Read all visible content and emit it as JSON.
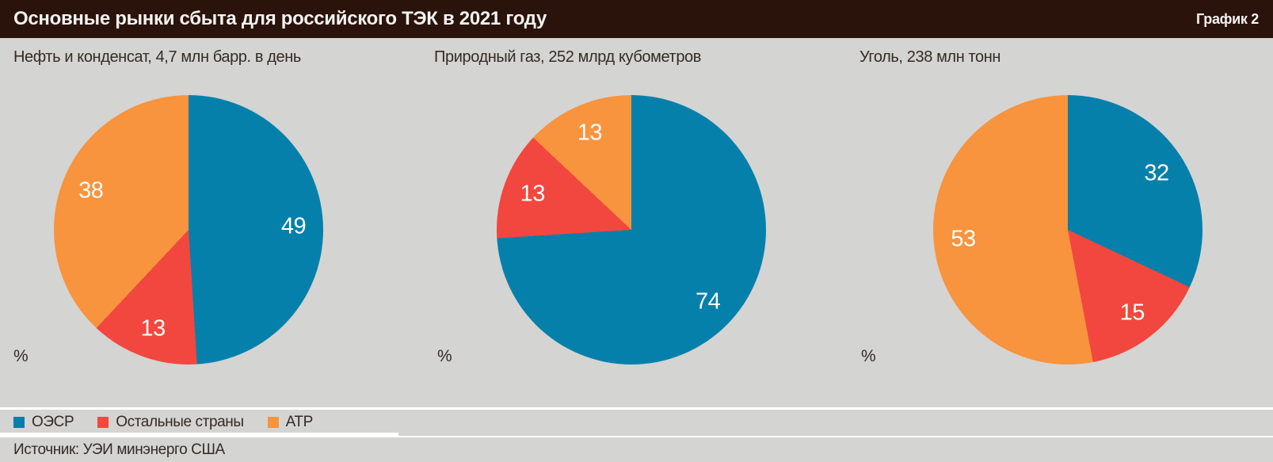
{
  "header": {
    "title": "Основные рынки сбыта для российского ТЭК в 2021 году",
    "chart_number": "График 2"
  },
  "legend": {
    "position": "bottom-left",
    "items": [
      {
        "label": "ОЭСР",
        "color": "#0580ab"
      },
      {
        "label": "Остальные страны",
        "color": "#f2473e"
      },
      {
        "label": "АТР",
        "color": "#f8933e"
      }
    ]
  },
  "percent_symbol": "%",
  "source": "Источник: УЭИ минэнерго США",
  "colors": {
    "header_bg": "#2a130b",
    "page_bg": "#d4d4d2",
    "text_dark": "#352b24",
    "slice_label": "#ffffff"
  },
  "chart_data": [
    {
      "type": "pie",
      "title": "Нефть и конденсат, 4,7 млн барр. в день",
      "categories": [
        "ОЭСР",
        "Остальные страны",
        "АТР"
      ],
      "values": [
        49,
        13,
        38
      ],
      "unit": "%",
      "start_angle_deg": 0,
      "direction": "clockwise",
      "labels_inside": true
    },
    {
      "type": "pie",
      "title": "Природный газ, 252 млрд кубометров",
      "categories": [
        "ОЭСР",
        "Остальные страны",
        "АТР"
      ],
      "values": [
        74,
        13,
        13
      ],
      "unit": "%",
      "start_angle_deg": 0,
      "direction": "clockwise",
      "labels_inside": true
    },
    {
      "type": "pie",
      "title": "Уголь, 238 млн тонн",
      "categories": [
        "ОЭСР",
        "Остальные страны",
        "АТР"
      ],
      "values": [
        32,
        15,
        53
      ],
      "unit": "%",
      "start_angle_deg": 0,
      "direction": "clockwise",
      "labels_inside": true
    }
  ]
}
